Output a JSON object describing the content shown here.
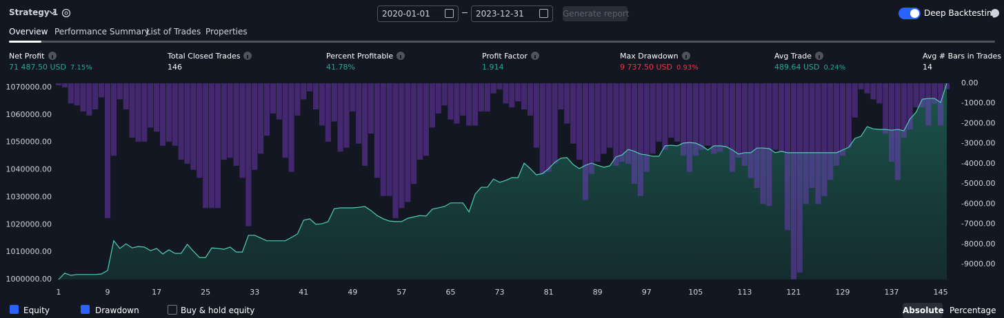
{
  "header": {
    "strategy": "Strategy 1",
    "start_date": "2020-01-01",
    "end_date": "2023-12-31",
    "generate_button": "Generate report",
    "deep_backtesting": "Deep Backtesting"
  },
  "tabs": [
    "Overview",
    "Performance Summary",
    "List of Trades",
    "Properties"
  ],
  "metrics": [
    {
      "label": "Net Profit",
      "value": "71 487.50 USD",
      "percent": "7.15%",
      "color": "#22ab94"
    },
    {
      "label": "Total Closed Trades",
      "value": "146",
      "color": "#ffffff"
    },
    {
      "label": "Percent Profitable",
      "value": "41.78%",
      "color": "#22ab94"
    },
    {
      "label": "Profit Factor",
      "value": "1.914",
      "color": "#22ab94"
    },
    {
      "label": "Max Drawdown",
      "value": "9 737.50 USD",
      "percent": "0.93%",
      "color": "#f23645"
    },
    {
      "label": "Avg Trade",
      "value": "489.64 USD",
      "percent": "0.24%",
      "color": "#22ab94"
    },
    {
      "label": "Avg # Bars in Trades",
      "value": "14",
      "color": "#ffffff"
    }
  ],
  "chart_data": {
    "type": "equity-drawdown",
    "x": [
      1,
      2,
      3,
      4,
      5,
      6,
      7,
      8,
      9,
      10,
      11,
      12,
      13,
      14,
      15,
      16,
      17,
      18,
      19,
      20,
      21,
      22,
      23,
      24,
      25,
      26,
      27,
      28,
      29,
      30,
      31,
      32,
      33,
      34,
      35,
      36,
      37,
      38,
      39,
      40,
      41,
      42,
      43,
      44,
      45,
      46,
      47,
      48,
      49,
      50,
      51,
      52,
      53,
      54,
      55,
      56,
      57,
      58,
      59,
      60,
      61,
      62,
      63,
      64,
      65,
      66,
      67,
      68,
      69,
      70,
      71,
      72,
      73,
      74,
      75,
      76,
      77,
      78,
      79,
      80,
      81,
      82,
      83,
      84,
      85,
      86,
      87,
      88,
      89,
      90,
      91,
      92,
      93,
      94,
      95,
      96,
      97,
      98,
      99,
      100,
      101,
      102,
      103,
      104,
      105,
      106,
      107,
      108,
      109,
      110,
      111,
      112,
      113,
      114,
      115,
      116,
      117,
      118,
      119,
      120,
      121,
      122,
      123,
      124,
      125,
      126,
      127,
      128,
      129,
      130,
      131,
      132,
      133,
      134,
      135,
      136,
      137,
      138,
      139,
      140,
      141,
      142,
      143,
      144,
      145,
      146
    ],
    "series": [
      {
        "name": "Equity",
        "color": "#22ab94",
        "values": [
          1000000,
          1002300,
          1001500,
          1001800,
          1001800,
          1001800,
          1001800,
          1002000,
          1003300,
          1014100,
          1011300,
          1013000,
          1011500,
          1012000,
          1011800,
          1010500,
          1011300,
          1009300,
          1010800,
          1009500,
          1009500,
          1012800,
          1010300,
          1008000,
          1008000,
          1011500,
          1011300,
          1011000,
          1011800,
          1010000,
          1010000,
          1016100,
          1016100,
          1015100,
          1014100,
          1014100,
          1014100,
          1014100,
          1015300,
          1016600,
          1021600,
          1022100,
          1020100,
          1020300,
          1021100,
          1025800,
          1026100,
          1026100,
          1026100,
          1026300,
          1026600,
          1025100,
          1023300,
          1022100,
          1021300,
          1021100,
          1021100,
          1022300,
          1022800,
          1023300,
          1023100,
          1025600,
          1026100,
          1026600,
          1027900,
          1027900,
          1027900,
          1024600,
          1031100,
          1033600,
          1033600,
          1036600,
          1035400,
          1036100,
          1037100,
          1037100,
          1042400,
          1040400,
          1038100,
          1038600,
          1040400,
          1042700,
          1044200,
          1044400,
          1041900,
          1040400,
          1041600,
          1042400,
          1041600,
          1040900,
          1041400,
          1044700,
          1045400,
          1047400,
          1046700,
          1045700,
          1045400,
          1044900,
          1044900,
          1048700,
          1048900,
          1048700,
          1049700,
          1049900,
          1049700,
          1048700,
          1047200,
          1048700,
          1048700,
          1048400,
          1047200,
          1045700,
          1046200,
          1046200,
          1047900,
          1047900,
          1047700,
          1046200,
          1046700,
          1046200,
          1046200,
          1046200,
          1046200,
          1046200,
          1046200,
          1046200,
          1046200,
          1046200,
          1047200,
          1048200,
          1051400,
          1052200,
          1055700,
          1054900,
          1054700,
          1054700,
          1054400,
          1054700,
          1054200,
          1058500,
          1061000,
          1065700,
          1066000,
          1066000,
          1064500,
          1071487.5
        ]
      },
      {
        "name": "Drawdown",
        "color": "#7e3fd0",
        "axis": "y2",
        "values": [
          -100,
          -200,
          -1000,
          -1100,
          -1400,
          -1600,
          -1300,
          -700,
          -6700,
          -3600,
          -800,
          -1300,
          -2700,
          -2900,
          -2900,
          -2200,
          -2400,
          -3100,
          -2900,
          -3100,
          -3800,
          -4000,
          -4300,
          -4700,
          -6200,
          -6200,
          -6200,
          -3800,
          -3700,
          -4100,
          -4700,
          -7100,
          -4300,
          -3500,
          -2600,
          -1500,
          -1800,
          -3700,
          -4400,
          -1600,
          -800,
          -400,
          -1300,
          -2100,
          -2900,
          -1900,
          -3400,
          -3200,
          -1400,
          -3000,
          -4100,
          -2500,
          -4700,
          -5600,
          -5600,
          -6700,
          -6200,
          -5900,
          -5000,
          -3800,
          -3600,
          -2200,
          -1500,
          -1100,
          -1800,
          -2000,
          -1600,
          -2100,
          -2100,
          -1400,
          -1400,
          -500,
          -300,
          -1000,
          -1200,
          -900,
          -1300,
          -1600,
          -3200,
          -4500,
          -4400,
          -4000,
          -1300,
          -2000,
          -3000,
          -3800,
          -5800,
          -4500,
          -3900,
          -3500,
          -3200,
          -4100,
          -3900,
          -4000,
          -5000,
          -5600,
          -4400,
          -3500,
          -2900,
          -3300,
          -2700,
          -2900,
          -3600,
          -4400,
          -3600,
          -3300,
          -3100,
          -3500,
          -3400,
          -3200,
          -4400,
          -3700,
          -4100,
          -4700,
          -5200,
          -6000,
          -6100,
          -3300,
          -3400,
          -7300,
          -9737.5,
          -9400,
          -6000,
          -5200,
          -6000,
          -5600,
          -4800,
          -4100,
          -3600,
          -3200,
          -1700,
          -300,
          -500,
          -800,
          -1000,
          -2500,
          -3900,
          -4800,
          -2700,
          -2300,
          -1200,
          -1200,
          -2100,
          -1000,
          -2100,
          -300
        ]
      }
    ],
    "xlim": [
      1,
      146
    ],
    "xticks": [
      1,
      9,
      17,
      25,
      33,
      41,
      49,
      57,
      65,
      73,
      81,
      89,
      97,
      105,
      113,
      121,
      129,
      137,
      145
    ],
    "ylim": [
      1000000,
      1071500
    ],
    "yticks": [
      {
        "value": 1000000,
        "label": "1000000.00"
      },
      {
        "value": 1010000,
        "label": "1010000.00"
      },
      {
        "value": 1020000,
        "label": "1020000.00"
      },
      {
        "value": 1030000,
        "label": "1030000.00"
      },
      {
        "value": 1040000,
        "label": "1040000.00"
      },
      {
        "value": 1050000,
        "label": "1050000.00"
      },
      {
        "value": 1060000,
        "label": "1060000.00"
      },
      {
        "value": 1070000,
        "label": "1070000.00"
      }
    ],
    "y2lim": [
      -9750,
      0
    ],
    "y2ticks": [
      {
        "value": 0,
        "label": "0.00"
      },
      {
        "value": -1000,
        "label": "-1000.00"
      },
      {
        "value": -2000,
        "label": "-2000.00"
      },
      {
        "value": -3000,
        "label": "-3000.00"
      },
      {
        "value": -4000,
        "label": "-4000.00"
      },
      {
        "value": -5000,
        "label": "-5000.00"
      },
      {
        "value": -6000,
        "label": "-6000.00"
      },
      {
        "value": -7000,
        "label": "-7000.00"
      },
      {
        "value": -8000,
        "label": "-8000.00"
      },
      {
        "value": -9000,
        "label": "-9000.00"
      }
    ]
  },
  "controls": {
    "buy_hold": "Buy & hold equity",
    "modes": [
      "Absolute",
      "Percentage"
    ]
  }
}
